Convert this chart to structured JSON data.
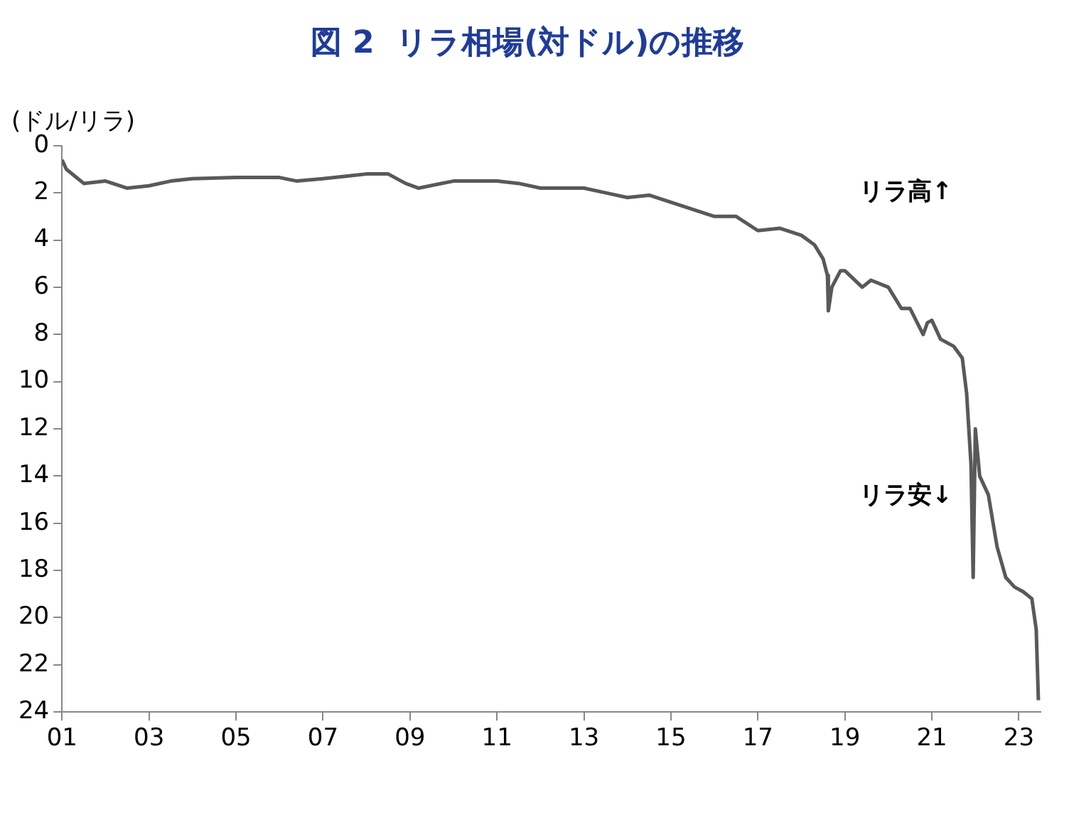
{
  "chart_data": {
    "type": "line",
    "title": "図 2  リラ相場(対ドル)の推移",
    "ylabel": "(ドル/リラ)",
    "series": [
      {
        "color": "#595959",
        "x": [
          2001.0,
          2001.1,
          2001.5,
          2002,
          2002.5,
          2003,
          2003.5,
          2004,
          2005,
          2006,
          2006.4,
          2007,
          2008,
          2008.5,
          2008.9,
          2009.2,
          2010,
          2011,
          2011.5,
          2012,
          2013,
          2013.5,
          2014,
          2014.5,
          2015,
          2015.5,
          2016,
          2016.5,
          2017,
          2017.5,
          2018,
          2018.3,
          2018.5,
          2018.6,
          2018.62,
          2018.7,
          2018.9,
          2019,
          2019.4,
          2019.6,
          2020,
          2020.3,
          2020.5,
          2020.8,
          2020.9,
          2021,
          2021.2,
          2021.5,
          2021.7,
          2021.8,
          2021.9,
          2021.95,
          2022.0,
          2022.1,
          2022.3,
          2022.5,
          2022.7,
          2022.9,
          2023.1,
          2023.3,
          2023.4,
          2023.45
        ],
        "values": [
          0.6,
          1.0,
          1.6,
          1.5,
          1.8,
          1.7,
          1.5,
          1.4,
          1.35,
          1.35,
          1.5,
          1.4,
          1.2,
          1.2,
          1.6,
          1.8,
          1.5,
          1.5,
          1.6,
          1.8,
          1.8,
          2.0,
          2.2,
          2.1,
          2.4,
          2.7,
          3.0,
          3.0,
          3.6,
          3.5,
          3.8,
          4.2,
          4.8,
          5.5,
          7.0,
          6.0,
          5.3,
          5.3,
          6.0,
          5.7,
          6.0,
          6.9,
          6.9,
          8.0,
          7.5,
          7.4,
          8.2,
          8.5,
          9.0,
          10.5,
          13.5,
          18.3,
          12.0,
          14.0,
          14.8,
          17.0,
          18.3,
          18.7,
          18.9,
          19.2,
          20.5,
          23.5
        ]
      }
    ],
    "xlim": [
      2001,
      2023.5
    ],
    "xticks": [
      {
        "value": 2001,
        "label": "01"
      },
      {
        "value": 2003,
        "label": "03"
      },
      {
        "value": 2005,
        "label": "05"
      },
      {
        "value": 2007,
        "label": "07"
      },
      {
        "value": 2009,
        "label": "09"
      },
      {
        "value": 2011,
        "label": "11"
      },
      {
        "value": 2013,
        "label": "13"
      },
      {
        "value": 2015,
        "label": "15"
      },
      {
        "value": 2017,
        "label": "17"
      },
      {
        "value": 2019,
        "label": "19"
      },
      {
        "value": 2021,
        "label": "21"
      },
      {
        "value": 2023,
        "label": "23"
      }
    ],
    "ylim": [
      24,
      0
    ],
    "yticks": [
      0,
      2,
      4,
      6,
      8,
      10,
      12,
      14,
      16,
      18,
      20,
      22,
      24
    ],
    "annotations": [
      "リラ高↑",
      "リラ安↓"
    ],
    "grid": false,
    "legend": false,
    "marker": "none",
    "line_style": "solid"
  }
}
